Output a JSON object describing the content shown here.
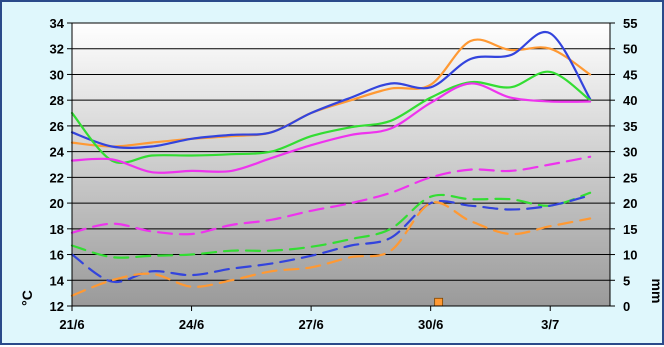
{
  "chart_data": {
    "type": "line",
    "title": "",
    "xlabel": "",
    "ylabel_left": "°C",
    "ylabel_right": "mm",
    "x_ticks": [
      "21/6",
      "24/6",
      "27/6",
      "30/6",
      "3/7"
    ],
    "x_tick_positions": [
      0,
      3,
      6,
      9,
      12
    ],
    "x_range": [
      0,
      13.5
    ],
    "y_left_range": [
      12,
      34
    ],
    "y_left_ticks": [
      12,
      14,
      16,
      18,
      20,
      22,
      24,
      26,
      28,
      30,
      32,
      34
    ],
    "y_right_range": [
      0,
      55
    ],
    "y_right_ticks": [
      0,
      5,
      10,
      15,
      20,
      25,
      30,
      35,
      40,
      45,
      50,
      55
    ],
    "grid": true,
    "legend": "none",
    "series": [
      {
        "color": "#ff9933",
        "dashed": false,
        "x": [
          0,
          1,
          2,
          3,
          4,
          5,
          6,
          7,
          8,
          9,
          10,
          11,
          12,
          13
        ],
        "y": [
          24.7,
          24.4,
          24.7,
          25.0,
          25.2,
          25.5,
          27.0,
          28.0,
          28.9,
          29.2,
          32.6,
          31.9,
          32.0,
          30.0
        ]
      },
      {
        "color": "#3344dd",
        "dashed": false,
        "x": [
          0,
          1,
          2,
          3,
          4,
          5,
          6,
          7,
          8,
          9,
          10,
          11,
          12,
          13
        ],
        "y": [
          25.5,
          24.4,
          24.4,
          25.0,
          25.3,
          25.5,
          27.0,
          28.2,
          29.3,
          29.0,
          31.2,
          31.5,
          33.2,
          28.1
        ]
      },
      {
        "color": "#33dd33",
        "dashed": false,
        "x": [
          0,
          1,
          2,
          3,
          4,
          5,
          6,
          7,
          8,
          9,
          10,
          11,
          12,
          13
        ],
        "y": [
          27.0,
          23.3,
          23.7,
          23.7,
          23.8,
          24.0,
          25.2,
          25.9,
          26.4,
          28.2,
          29.4,
          29.0,
          30.2,
          28.0
        ]
      },
      {
        "color": "#ee33ee",
        "dashed": false,
        "x": [
          0,
          1,
          2,
          3,
          4,
          5,
          6,
          7,
          8,
          9,
          10,
          11,
          12,
          13
        ],
        "y": [
          23.3,
          23.4,
          22.4,
          22.5,
          22.5,
          23.5,
          24.5,
          25.3,
          25.8,
          27.8,
          29.3,
          28.2,
          27.9,
          27.9
        ]
      },
      {
        "color": "#ee33ee",
        "dashed": true,
        "x": [
          0,
          1,
          2,
          3,
          4,
          5,
          6,
          7,
          8,
          9,
          10,
          11,
          12,
          13
        ],
        "y": [
          17.7,
          18.4,
          17.8,
          17.6,
          18.3,
          18.7,
          19.4,
          20.0,
          20.8,
          22.0,
          22.6,
          22.5,
          23.0,
          23.6
        ]
      },
      {
        "color": "#33dd33",
        "dashed": true,
        "x": [
          0,
          1,
          2,
          3,
          4,
          5,
          6,
          7,
          8,
          9,
          10,
          11,
          12,
          13
        ],
        "y": [
          16.7,
          15.8,
          15.9,
          16.0,
          16.3,
          16.3,
          16.6,
          17.2,
          18.0,
          20.5,
          20.3,
          20.3,
          19.8,
          20.8
        ]
      },
      {
        "color": "#3344dd",
        "dashed": true,
        "x": [
          0,
          1,
          2,
          3,
          4,
          5,
          6,
          7,
          8,
          9,
          10,
          11,
          12,
          13
        ],
        "y": [
          16.0,
          13.9,
          14.7,
          14.4,
          14.9,
          15.3,
          15.9,
          16.7,
          17.3,
          20.0,
          19.8,
          19.5,
          19.8,
          20.6
        ]
      },
      {
        "color": "#ff9933",
        "dashed": true,
        "x": [
          0,
          1,
          2,
          3,
          4,
          5,
          6,
          7,
          8,
          9,
          10,
          11,
          12,
          13
        ],
        "y": [
          12.8,
          14.0,
          14.5,
          13.5,
          14.0,
          14.7,
          15.0,
          15.8,
          16.3,
          20.0,
          18.6,
          17.6,
          18.2,
          18.8
        ]
      }
    ],
    "bars_right_axis": [
      {
        "x": 9.2,
        "value": 1.5,
        "color": "#ff9933"
      }
    ]
  }
}
